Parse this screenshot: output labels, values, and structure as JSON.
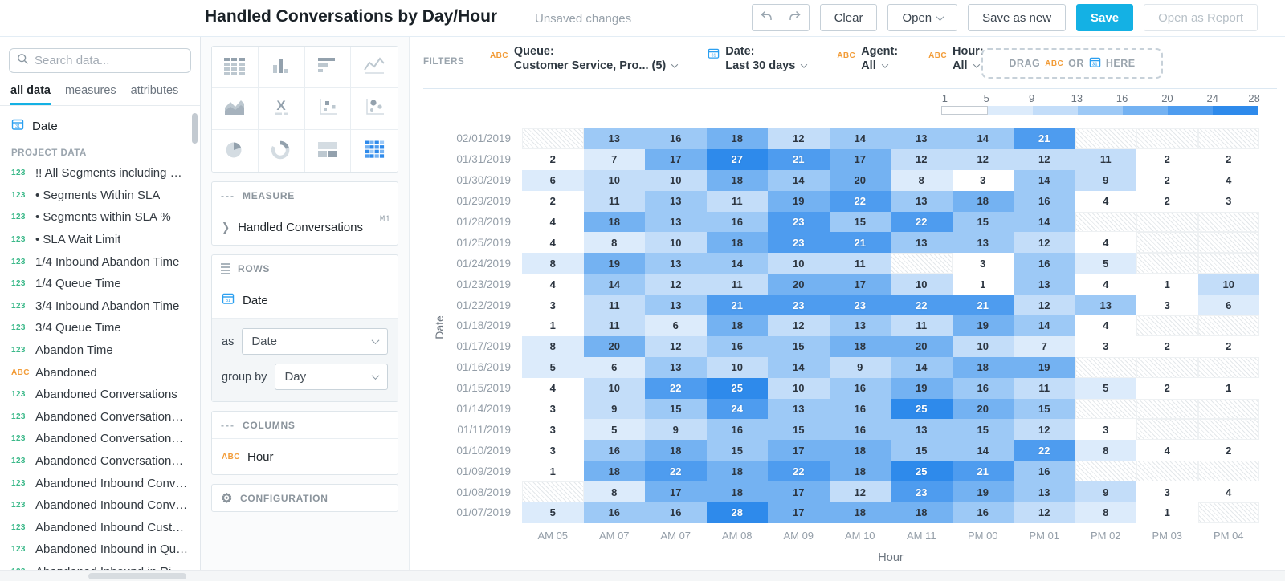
{
  "header": {
    "title": "Handled Conversations by Day/Hour",
    "status": "Unsaved changes",
    "clear_label": "Clear",
    "open_label": "Open",
    "save_as_new_label": "Save as new",
    "save_label": "Save",
    "open_as_report_label": "Open as Report"
  },
  "sidebar": {
    "search_placeholder": "Search data...",
    "tabs": [
      "all data",
      "measures",
      "attributes"
    ],
    "active_tab": "all data",
    "date_item": "Date",
    "section_label": "PROJECT DATA",
    "items": [
      {
        "icon": "123",
        "label": "!! All Segments including Virtual"
      },
      {
        "icon": "123",
        "label": "• Segments Within SLA"
      },
      {
        "icon": "123",
        "label": "• Segments within SLA %"
      },
      {
        "icon": "123",
        "label": "• SLA Wait Limit"
      },
      {
        "icon": "123",
        "label": "1/4 Inbound Abandon Time"
      },
      {
        "icon": "123",
        "label": "1/4 Queue Time"
      },
      {
        "icon": "123",
        "label": "3/4 Inbound Abandon Time"
      },
      {
        "icon": "123",
        "label": "3/4 Queue Time"
      },
      {
        "icon": "123",
        "label": "Abandon Time"
      },
      {
        "icon": "ABC",
        "label": "Abandoned"
      },
      {
        "icon": "123",
        "label": "Abandoned Conversations"
      },
      {
        "icon": "123",
        "label": "Abandoned Conversations %"
      },
      {
        "icon": "123",
        "label": "Abandoned Conversations in..."
      },
      {
        "icon": "123",
        "label": "Abandoned Conversations in..."
      },
      {
        "icon": "123",
        "label": "Abandoned Inbound Convers..."
      },
      {
        "icon": "123",
        "label": "Abandoned Inbound Convers..."
      },
      {
        "icon": "123",
        "label": "Abandoned Inbound Custom..."
      },
      {
        "icon": "123",
        "label": "Abandoned Inbound in Queue"
      },
      {
        "icon": "123",
        "label": "Abandoned Inbound in Ri..."
      }
    ]
  },
  "builder": {
    "vis_types": [
      "table",
      "column-chart",
      "bar-chart",
      "line-chart",
      "area-chart",
      "headline",
      "scatter-plot",
      "bubble-chart",
      "pie-chart",
      "donut-chart",
      "treemap",
      "heatmap"
    ],
    "selected_vis": "heatmap",
    "measure_section": "MEASURE",
    "measure_label": "Handled Conversations",
    "measure_tag": "M1",
    "rows_section": "ROWS",
    "rows_item": "Date",
    "as_label": "as",
    "as_value": "Date",
    "group_by_label": "group by",
    "group_by_value": "Day",
    "columns_section": "COLUMNS",
    "columns_item": "Hour",
    "configuration_section": "CONFIGURATION"
  },
  "filters": {
    "caption": "FILTERS",
    "items": [
      {
        "icon": "abc",
        "label": "Queue:",
        "value": "Customer Service, Pro... (5)"
      },
      {
        "icon": "date",
        "label": "Date:",
        "value": "Last 30 days"
      },
      {
        "icon": "abc",
        "label": "Agent:",
        "value": "All"
      },
      {
        "icon": "abc",
        "label": "Hour:",
        "value": "All"
      }
    ],
    "drag": {
      "prefix": "DRAG",
      "abc": "ABC",
      "or": "OR",
      "here": "HERE"
    }
  },
  "colors": {
    "accent": "#14b1e4",
    "measure_green": "#3cb98a",
    "attribute_orange": "#f29c38",
    "date_blue": "#2b9ff0",
    "heat_scale": [
      "#ffffff",
      "#dcebfb",
      "#c3ddf9",
      "#9dc9f6",
      "#74b2f2",
      "#4e9cef",
      "#2e8aeb"
    ]
  },
  "chart_data": {
    "type": "heatmap",
    "title": "Handled Conversations by Day/Hour",
    "xlabel": "Hour",
    "ylabel": "Date",
    "legend_labels": [
      "1",
      "5",
      "9",
      "13",
      "16",
      "20",
      "24",
      "28"
    ],
    "value_range": [
      1,
      28
    ],
    "columns": [
      "AM 05",
      "AM 07",
      "AM 07",
      "AM 08",
      "AM 09",
      "AM 10",
      "AM 11",
      "PM 00",
      "PM 01",
      "PM 02",
      "PM 03",
      "PM 04"
    ],
    "rows": [
      "02/01/2019",
      "01/31/2019",
      "01/30/2019",
      "01/29/2019",
      "01/28/2019",
      "01/25/2019",
      "01/24/2019",
      "01/23/2019",
      "01/22/2019",
      "01/18/2019",
      "01/17/2019",
      "01/16/2019",
      "01/15/2019",
      "01/14/2019",
      "01/11/2019",
      "01/10/2019",
      "01/09/2019",
      "01/08/2019",
      "01/07/2019"
    ],
    "values": [
      [
        null,
        13,
        16,
        18,
        12,
        14,
        13,
        14,
        21,
        null,
        null,
        null
      ],
      [
        2,
        7,
        17,
        27,
        21,
        17,
        12,
        12,
        12,
        11,
        2,
        2
      ],
      [
        6,
        10,
        10,
        18,
        14,
        20,
        8,
        3,
        14,
        9,
        2,
        4
      ],
      [
        2,
        11,
        13,
        11,
        19,
        22,
        13,
        18,
        16,
        4,
        2,
        3
      ],
      [
        4,
        18,
        13,
        16,
        23,
        15,
        22,
        15,
        14,
        null,
        null,
        null
      ],
      [
        4,
        8,
        10,
        18,
        23,
        21,
        13,
        13,
        12,
        4,
        null,
        null
      ],
      [
        8,
        19,
        13,
        14,
        10,
        11,
        null,
        3,
        16,
        5,
        null,
        null
      ],
      [
        4,
        14,
        12,
        11,
        20,
        17,
        10,
        1,
        13,
        4,
        1,
        10
      ],
      [
        3,
        11,
        13,
        21,
        23,
        23,
        22,
        21,
        12,
        13,
        3,
        6
      ],
      [
        1,
        11,
        6,
        18,
        12,
        13,
        11,
        19,
        14,
        4,
        null,
        null
      ],
      [
        8,
        20,
        12,
        16,
        15,
        18,
        20,
        10,
        7,
        3,
        2,
        2
      ],
      [
        5,
        6,
        13,
        10,
        14,
        9,
        14,
        18,
        19,
        null,
        null,
        null
      ],
      [
        4,
        10,
        22,
        25,
        10,
        16,
        19,
        16,
        11,
        5,
        2,
        1
      ],
      [
        3,
        9,
        15,
        24,
        13,
        16,
        25,
        20,
        15,
        null,
        null,
        null
      ],
      [
        3,
        5,
        9,
        16,
        15,
        16,
        13,
        15,
        12,
        3,
        null,
        null
      ],
      [
        3,
        16,
        18,
        15,
        17,
        18,
        15,
        14,
        22,
        8,
        4,
        2
      ],
      [
        1,
        18,
        22,
        18,
        22,
        18,
        25,
        21,
        16,
        null,
        null,
        null
      ],
      [
        null,
        8,
        17,
        18,
        17,
        12,
        23,
        19,
        13,
        9,
        3,
        4
      ],
      [
        5,
        16,
        16,
        28,
        17,
        18,
        18,
        16,
        12,
        8,
        1,
        null
      ]
    ]
  }
}
